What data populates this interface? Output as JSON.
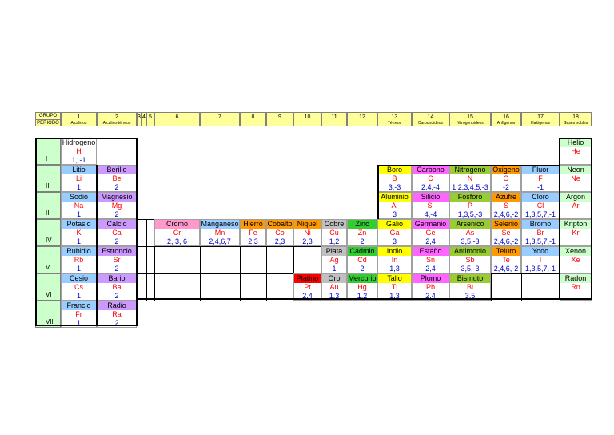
{
  "header": {
    "corner": [
      "GRUPO",
      "PERIODO"
    ],
    "groups": [
      {
        "label": "1",
        "sub": "Alcalinos"
      },
      {
        "label": "2",
        "sub": "Alcalino-térreos"
      },
      {
        "label": "3"
      },
      {
        "label": "4"
      },
      {
        "label": "5"
      },
      {
        "label": "6"
      },
      {
        "label": "7"
      },
      {
        "label": "8"
      },
      {
        "label": "9"
      },
      {
        "label": "10"
      },
      {
        "label": "11"
      },
      {
        "label": "12"
      },
      {
        "label": "13",
        "sub": "Térreos"
      },
      {
        "label": "14",
        "sub": "Carbonoideos"
      },
      {
        "label": "15",
        "sub": "Nitrogenoideos"
      },
      {
        "label": "16",
        "sub": "Anfígenos"
      },
      {
        "label": "17",
        "sub": "Halógenos"
      },
      {
        "label": "18",
        "sub": "Gases nobles"
      }
    ]
  },
  "periods": [
    {
      "label": "I",
      "elements": [
        {
          "name": "Hidrogeno",
          "symbol": "H",
          "valence": "1, -1",
          "color": "#ffffff"
        },
        {
          "name": "Helio",
          "symbol": "He",
          "color": "#ccffcc"
        }
      ]
    },
    {
      "label": "II",
      "elements": [
        {
          "name": "Litio",
          "symbol": "Li",
          "valence": "1",
          "color": "#99ccff"
        },
        {
          "name": "Berilio",
          "symbol": "Be",
          "valence": "2",
          "color": "#cc99ff"
        },
        {
          "name": "Boro",
          "symbol": "B",
          "valence": "3,-3",
          "color": "#ffff00"
        },
        {
          "name": "Carbono",
          "symbol": "C",
          "valence": "2,4,-4",
          "color": "#ff66ff"
        },
        {
          "name": "Nitrogeno",
          "symbol": "N",
          "valence": "1,2,3,4,5,-3",
          "color": "#99cc33"
        },
        {
          "name": "Oxigeno",
          "symbol": "O",
          "valence": "-2",
          "color": "#ff9900"
        },
        {
          "name": "Fluor",
          "symbol": "F",
          "valence": "-1",
          "color": "#99ccff"
        },
        {
          "name": "Neon",
          "symbol": "Ne",
          "color": "#ccffcc"
        }
      ]
    },
    {
      "label": "III",
      "elements": [
        {
          "name": "Sodio",
          "symbol": "Na",
          "valence": "1",
          "color": "#99ccff"
        },
        {
          "name": "Magnesio",
          "symbol": "Mg",
          "valence": "2",
          "color": "#cc99ff"
        },
        {
          "name": "Aluminio",
          "symbol": "Al",
          "valence": "3",
          "color": "#ffff00"
        },
        {
          "name": "Silicio",
          "symbol": "Si",
          "valence": "4,-4",
          "color": "#ff66ff"
        },
        {
          "name": "Fosforo",
          "symbol": "P",
          "valence": "1,3,5,-3",
          "color": "#99cc33"
        },
        {
          "name": "Azufre",
          "symbol": "S",
          "valence": "2,4,6,-2",
          "color": "#ff9900"
        },
        {
          "name": "Cloro",
          "symbol": "Cl",
          "valence": "1,3,5,7,-1",
          "color": "#99ccff"
        },
        {
          "name": "Argon",
          "symbol": "Ar",
          "color": "#ccffcc"
        }
      ]
    },
    {
      "label": "IV",
      "elements": [
        {
          "name": "Potasio",
          "symbol": "K",
          "valence": "1",
          "color": "#99ccff"
        },
        {
          "name": "Calcio",
          "symbol": "Ca",
          "valence": "2",
          "color": "#cc99ff"
        },
        {
          "name": "Cromo",
          "symbol": "Cr",
          "valence": "2, 3, 6",
          "color": "#ff99cc"
        },
        {
          "name": "Manganeso",
          "symbol": "Mn",
          "valence": "2,4,6,7",
          "color": "#99ccff"
        },
        {
          "name": "Hierro",
          "symbol": "Fe",
          "valence": "2,3",
          "color": "#ff9900"
        },
        {
          "name": "Cobalto",
          "symbol": "Co",
          "valence": "2,3",
          "color": "#ff9900"
        },
        {
          "name": "Niquel",
          "symbol": "Ni",
          "valence": "2,3",
          "color": "#ff9900"
        },
        {
          "name": "Cobre",
          "symbol": "Cu",
          "valence": "1,2",
          "color": "#c0c0c0"
        },
        {
          "name": "Zinc",
          "symbol": "Zn",
          "valence": "2",
          "color": "#33cc33"
        },
        {
          "name": "Galio",
          "symbol": "Ga",
          "valence": "3",
          "color": "#ffff00"
        },
        {
          "name": "Germanio",
          "symbol": "Ge",
          "valence": "2,4",
          "color": "#ff66ff"
        },
        {
          "name": "Arsenico",
          "symbol": "As",
          "valence": "3,5,-3",
          "color": "#99cc33"
        },
        {
          "name": "Selenio",
          "symbol": "Se",
          "valence": "2,4,6,-2",
          "color": "#ff9900"
        },
        {
          "name": "Bromo",
          "symbol": "Br",
          "valence": "1,3,5,7,-1",
          "color": "#99ccff"
        },
        {
          "name": "Kripton",
          "symbol": "Kr",
          "color": "#ccffcc"
        }
      ]
    },
    {
      "label": "V",
      "elements": [
        {
          "name": "Rubidio",
          "symbol": "Rb",
          "valence": "1",
          "color": "#99ccff"
        },
        {
          "name": "Estroncio",
          "symbol": "Sr",
          "valence": "2",
          "color": "#cc99ff"
        },
        {
          "name": "Plata",
          "symbol": "Ag",
          "valence": "1",
          "color": "#c0c0c0"
        },
        {
          "name": "Cadmio",
          "symbol": "Cd",
          "valence": "2",
          "color": "#33cc33"
        },
        {
          "name": "Indio",
          "symbol": "In",
          "valence": "1,3",
          "color": "#ffff00"
        },
        {
          "name": "Estaño",
          "symbol": "Sn",
          "valence": "2,4",
          "color": "#ff66ff"
        },
        {
          "name": "Antimonio",
          "symbol": "Sb",
          "valence": "3,5,-3",
          "color": "#99cc33"
        },
        {
          "name": "Teluro",
          "symbol": "Te",
          "valence": "2,4,6,-2",
          "color": "#ff9900"
        },
        {
          "name": "Yodo",
          "symbol": "I",
          "valence": "1,3,5,7,-1",
          "color": "#99ccff"
        },
        {
          "name": "Xenon",
          "symbol": "Xe",
          "color": "#ccffcc"
        }
      ]
    },
    {
      "label": "VI",
      "elements": [
        {
          "name": "Cesio",
          "symbol": "Cs",
          "valence": "1",
          "color": "#99ccff"
        },
        {
          "name": "Bario",
          "symbol": "Ba",
          "valence": "2",
          "color": "#cc99ff"
        },
        {
          "name": "Platino",
          "symbol": "Pt",
          "valence": "2,4",
          "color": "#ff0000"
        },
        {
          "name": "Oro",
          "symbol": "Au",
          "valence": "1,3",
          "color": "#c0c0c0"
        },
        {
          "name": "Mercurio",
          "symbol": "Hg",
          "valence": "1,2",
          "color": "#33cc33"
        },
        {
          "name": "Talio",
          "symbol": "Tl",
          "valence": "1,3",
          "color": "#ffff00"
        },
        {
          "name": "Plomo",
          "symbol": "Pb",
          "valence": "2,4",
          "color": "#ff66ff"
        },
        {
          "name": "Bismuto",
          "symbol": "Bi",
          "valence": "3,5",
          "color": "#99cc33"
        },
        {
          "name": "Radon",
          "symbol": "Rn",
          "color": "#ccffcc"
        }
      ]
    },
    {
      "label": "VII",
      "elements": [
        {
          "name": "Francio",
          "symbol": "Fr",
          "valence": "1",
          "color": "#99ccff"
        },
        {
          "name": "Radio",
          "symbol": "Ra",
          "valence": "2",
          "color": "#cc99ff"
        }
      ]
    }
  ]
}
